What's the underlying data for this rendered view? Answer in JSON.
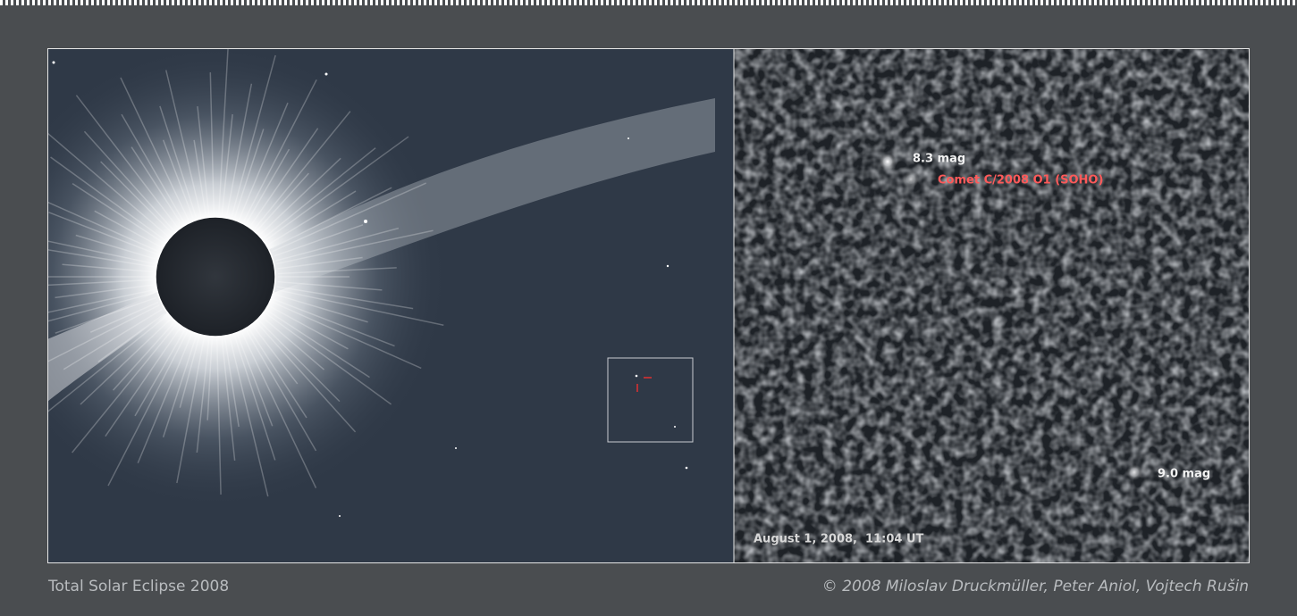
{
  "inset": {
    "labels": [
      "8.3 mag",
      "Comet C/2008 O1 (SOHO)",
      "9.0 mag"
    ],
    "date": "August 1, 2008,  11:04 UT"
  },
  "footer": {
    "title": "Total Solar Eclipse 2008",
    "credit": "© 2008 Miloslav Druckmüller, Peter Aniol, Vojtech Rušin"
  }
}
